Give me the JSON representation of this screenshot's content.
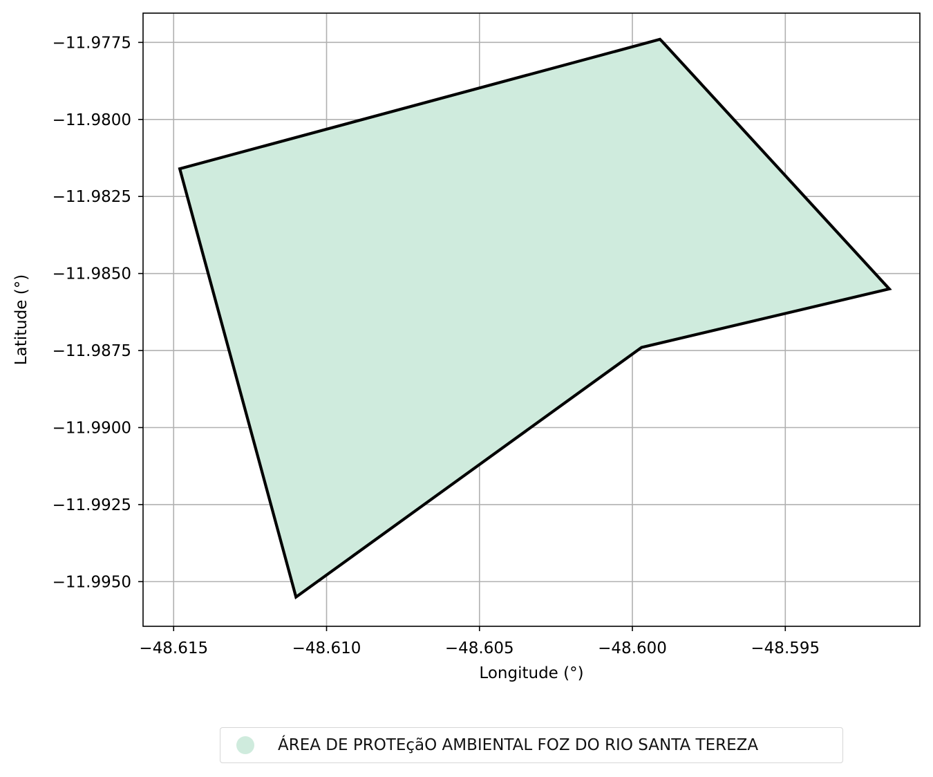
{
  "chart_data": {
    "type": "area",
    "xlabel": "Longitude (°)",
    "ylabel": "Latitude (°)",
    "xlim": [
      -48.616,
      -48.5906
    ],
    "ylim": [
      -11.99645,
      -11.97655
    ],
    "x_ticks": [
      -48.615,
      -48.61,
      -48.605,
      -48.6,
      -48.595
    ],
    "x_tick_labels": [
      "−48.615",
      "−48.610",
      "−48.605",
      "−48.600",
      "−48.595"
    ],
    "y_ticks": [
      -11.9775,
      -11.98,
      -11.9825,
      -11.985,
      -11.9875,
      -11.99,
      -11.9925,
      -11.995
    ],
    "y_tick_labels": [
      "−11.9775",
      "−11.9800",
      "−11.9825",
      "−11.9850",
      "−11.9875",
      "−11.9900",
      "−11.9925",
      "−11.9950"
    ],
    "grid": true,
    "legend_position": "bottom-center",
    "series": [
      {
        "name": "ÁREA DE PROTEçãO AMBIENTAL FOZ DO RIO SANTA TEREZA",
        "fill_color": "#cfebdd",
        "edge_color": "#000000",
        "polygon": [
          [
            -48.6148,
            -11.9816
          ],
          [
            -48.5991,
            -11.9774
          ],
          [
            -48.599,
            -11.9775
          ],
          [
            -48.5916,
            -11.9855
          ],
          [
            -48.5997,
            -11.9874
          ],
          [
            -48.611,
            -11.9955
          ],
          [
            -48.6148,
            -11.9816
          ]
        ]
      }
    ]
  }
}
